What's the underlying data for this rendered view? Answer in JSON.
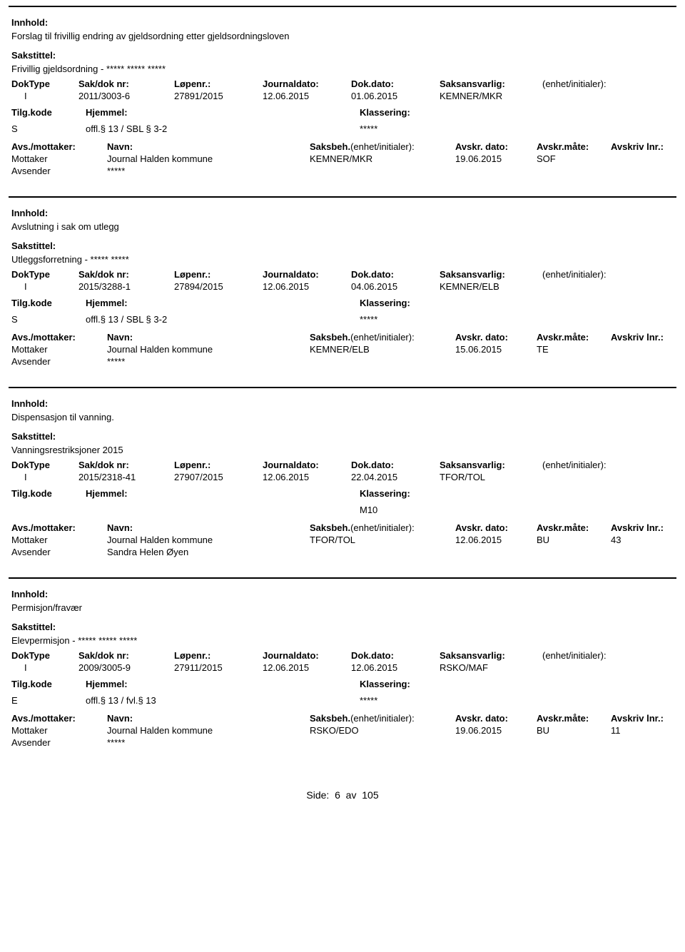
{
  "labels": {
    "innhold": "Innhold:",
    "sakstittel": "Sakstittel:",
    "doktype": "DokType",
    "sakdok": "Sak/dok nr:",
    "lopenr": "Løpenr.:",
    "journaldato": "Journaldato:",
    "dokdato": "Dok.dato:",
    "saksansvarlig": "Saksansvarlig:",
    "enhet": "(enhet/initialer):",
    "tilgkode": "Tilg.kode",
    "hjemmel": "Hjemmel:",
    "klassering": "Klassering:",
    "avsmottaker": "Avs./mottaker:",
    "navn": "Navn:",
    "saksbeh": "Saksbeh.",
    "saksbeh_enhet": "(enhet/initialer):",
    "avskrdato": "Avskr. dato:",
    "avskrmate": "Avskr.måte:",
    "avskrivlnr": "Avskriv lnr.:",
    "mottaker": "Mottaker",
    "avsender": "Avsender"
  },
  "records": [
    {
      "innhold": "Forslag til frivillig endring av gjeldsordning etter gjeldsordningsloven",
      "sakstittel": "Frivillig gjeldsordning - ***** ***** *****",
      "doktype": "I",
      "sakdok": "2011/3003-6",
      "lopenr": "27891/2015",
      "journaldato": "12.06.2015",
      "dokdato": "01.06.2015",
      "saksansvarlig": "KEMNER/MKR",
      "enhet": "",
      "tilgkode": "S",
      "hjemmel": "offl.§ 13 / SBL § 3-2",
      "klassering": "*****",
      "mottaker_navn": "Journal Halden kommune",
      "saksbeh": "KEMNER/MKR",
      "avskrdato": "19.06.2015",
      "avskrmate": "SOF",
      "avskrivlnr": "",
      "avsender_navn": "*****"
    },
    {
      "innhold": "Avslutning i sak om utlegg",
      "sakstittel": "Utleggsforretning - ***** *****",
      "doktype": "I",
      "sakdok": "2015/3288-1",
      "lopenr": "27894/2015",
      "journaldato": "12.06.2015",
      "dokdato": "04.06.2015",
      "saksansvarlig": "KEMNER/ELB",
      "enhet": "",
      "tilgkode": "S",
      "hjemmel": "offl.§ 13 / SBL § 3-2",
      "klassering": "*****",
      "mottaker_navn": "Journal Halden kommune",
      "saksbeh": "KEMNER/ELB",
      "avskrdato": "15.06.2015",
      "avskrmate": "TE",
      "avskrivlnr": "",
      "avsender_navn": "*****"
    },
    {
      "innhold": "Dispensasjon til vanning.",
      "sakstittel": "Vanningsrestriksjoner 2015",
      "doktype": "I",
      "sakdok": "2015/2318-41",
      "lopenr": "27907/2015",
      "journaldato": "12.06.2015",
      "dokdato": "22.04.2015",
      "saksansvarlig": "TFOR/TOL",
      "enhet": "",
      "tilgkode": "",
      "hjemmel": "",
      "klassering": "M10",
      "mottaker_navn": "Journal Halden kommune",
      "saksbeh": "TFOR/TOL",
      "avskrdato": "12.06.2015",
      "avskrmate": "BU",
      "avskrivlnr": "43",
      "avsender_navn": "Sandra Helen Øyen"
    },
    {
      "innhold": "Permisjon/fravær",
      "sakstittel": "Elevpermisjon - ***** ***** *****",
      "doktype": "I",
      "sakdok": "2009/3005-9",
      "lopenr": "27911/2015",
      "journaldato": "12.06.2015",
      "dokdato": "12.06.2015",
      "saksansvarlig": "RSKO/MAF",
      "enhet": "",
      "tilgkode": "E",
      "hjemmel": "offl.§ 13 / fvl.§ 13",
      "klassering": "*****",
      "mottaker_navn": "Journal Halden kommune",
      "saksbeh": "RSKO/EDO",
      "avskrdato": "19.06.2015",
      "avskrmate": "BU",
      "avskrivlnr": "11",
      "avsender_navn": "*****"
    }
  ],
  "footer": {
    "label": "Side:",
    "page": "6",
    "of": "av",
    "total": "105"
  }
}
